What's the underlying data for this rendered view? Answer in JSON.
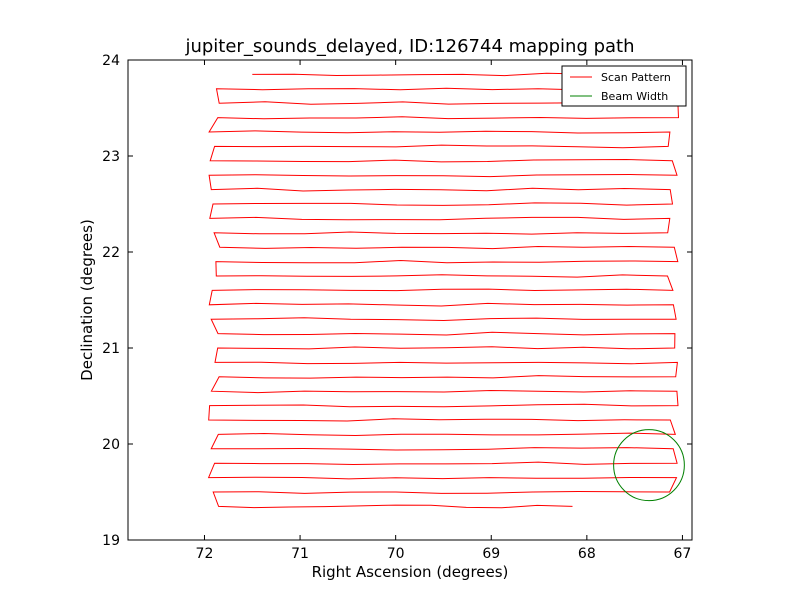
{
  "chart_data": {
    "type": "line",
    "title": "jupiter_sounds_delayed, ID:126744 mapping path",
    "xlabel": "Right Ascension (degrees)",
    "ylabel": "Declination (degrees)",
    "xlim": [
      72.8,
      66.9
    ],
    "ylim": [
      19,
      24
    ],
    "x_inverted": true,
    "xticks": [
      72,
      71,
      70,
      69,
      68,
      67
    ],
    "yticks": [
      19,
      20,
      21,
      22,
      23,
      24
    ],
    "grid": false,
    "legend_position": "top-right",
    "series": [
      {
        "name": "Scan Pattern",
        "color": "#ff0000",
        "kind": "raster-scan",
        "dec_start": 23.85,
        "dec_end": 19.34,
        "dec_step": 0.15,
        "ra_west": 71.9,
        "ra_east": 67.1,
        "ra_start": 71.5,
        "ra_end": 68.15
      },
      {
        "name": "Beam Width",
        "color": "#008000",
        "kind": "circle",
        "center_ra": 67.35,
        "center_dec": 19.78,
        "radius_deg": 0.37
      }
    ]
  }
}
